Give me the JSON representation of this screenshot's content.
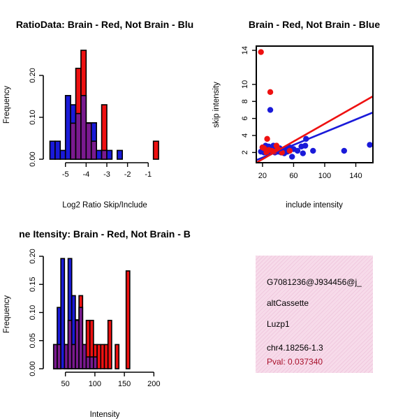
{
  "colors": {
    "red": "#ee1111",
    "blue": "#1a1ad9",
    "overlap": "#7a1a8f"
  },
  "chart_data": [
    {
      "type": "bar",
      "title": "RatioData: Brain - Red, Not Brain - Blu",
      "xlabel": "Log2 Ratio Skip/Include",
      "ylabel": "Frequency",
      "xlim": [
        -5.8,
        -0.3
      ],
      "ylim": [
        0,
        0.26
      ],
      "xticks": [
        -5,
        -4,
        -3,
        -2,
        -1
      ],
      "xtick_labels": [
        "-5",
        "-4",
        "-3",
        "-2",
        "-1"
      ],
      "yticks": [
        0,
        0.1,
        0.2
      ],
      "ytick_labels": [
        "0.00",
        "0.10",
        "0.20"
      ],
      "bin_start": -5.75,
      "bin_width": 0.25,
      "series": [
        {
          "name": "Brain",
          "color": "red",
          "values": [
            0,
            0,
            0,
            0,
            0.086,
            0.217,
            0.26,
            0.086,
            0.043,
            0,
            0.13,
            0,
            0,
            0,
            0,
            0,
            0,
            0,
            0,
            0,
            0.043
          ]
        },
        {
          "name": "Not Brain",
          "color": "blue",
          "values": [
            0.043,
            0.043,
            0.021,
            0.152,
            0.13,
            0.109,
            0.152,
            0.087,
            0.087,
            0.021,
            0.021,
            0.021,
            0,
            0.021,
            0,
            0,
            0,
            0,
            0,
            0,
            0
          ]
        }
      ]
    },
    {
      "type": "scatter",
      "title": "Brain - Red, Not Brain - Blue",
      "xlabel": "include intensity",
      "ylabel": "skip intensity",
      "xlim": [
        12,
        162
      ],
      "ylim": [
        0.8,
        14.5
      ],
      "xticks": [
        20,
        60,
        100,
        140
      ],
      "xtick_labels": [
        "20",
        "60",
        "100",
        "140"
      ],
      "yticks": [
        2,
        4,
        6,
        8,
        10,
        14
      ],
      "ytick_labels": [
        "2",
        "4",
        "6",
        "8",
        "10",
        "14"
      ],
      "series": [
        {
          "name": "Brain",
          "color": "red",
          "points": [
            [
              18,
              13.8
            ],
            [
              30,
              9.1
            ],
            [
              26,
              3.6
            ],
            [
              38,
              2.8
            ],
            [
              22,
              2.5
            ],
            [
              32,
              2.2
            ],
            [
              45,
              2.0
            ],
            [
              20,
              2.6
            ],
            [
              40,
              2.4
            ],
            [
              28,
              2.3
            ],
            [
              55,
              2.2
            ],
            [
              35,
              2.1
            ],
            [
              25,
              2.0
            ]
          ],
          "fit": [
            [
              12,
              0.8
            ],
            [
              162,
              8.6
            ]
          ]
        },
        {
          "name": "Not Brain",
          "color": "blue",
          "points": [
            [
              30,
              7.0
            ],
            [
              18,
              2.1
            ],
            [
              20,
              2.6
            ],
            [
              22,
              2.0
            ],
            [
              24,
              2.8
            ],
            [
              25,
              2.4
            ],
            [
              26,
              2.1
            ],
            [
              28,
              2.7
            ],
            [
              30,
              2.0
            ],
            [
              31,
              2.5
            ],
            [
              33,
              2.2
            ],
            [
              34,
              2.8
            ],
            [
              36,
              2.0
            ],
            [
              38,
              2.6
            ],
            [
              40,
              2.1
            ],
            [
              42,
              2.5
            ],
            [
              44,
              2.0
            ],
            [
              46,
              2.3
            ],
            [
              48,
              1.9
            ],
            [
              50,
              2.4
            ],
            [
              52,
              2.1
            ],
            [
              55,
              2.6
            ],
            [
              58,
              1.5
            ],
            [
              60,
              2.4
            ],
            [
              65,
              2.2
            ],
            [
              70,
              2.7
            ],
            [
              72,
              1.9
            ],
            [
              75,
              2.8
            ],
            [
              76,
              3.6
            ],
            [
              85,
              2.2
            ],
            [
              125,
              2.2
            ],
            [
              158,
              2.9
            ]
          ],
          "fit": [
            [
              12,
              1.1
            ],
            [
              162,
              6.7
            ]
          ]
        }
      ]
    },
    {
      "type": "bar",
      "title": "ne Itensity: Brain - Red, Not Brain - B",
      "xlabel": "Intensity",
      "ylabel": "Frequency",
      "xlim": [
        22,
        215
      ],
      "ylim": [
        0,
        0.2
      ],
      "xticks": [
        50,
        100,
        150,
        200
      ],
      "xtick_labels": [
        "50",
        "100",
        "150",
        "200"
      ],
      "yticks": [
        0,
        0.05,
        0.1,
        0.15,
        0.2
      ],
      "ytick_labels": [
        "0.00",
        "0.05",
        "0.10",
        "0.15",
        "0.20"
      ],
      "bin_start": 30,
      "bin_width": 6.15,
      "series": [
        {
          "name": "Brain",
          "color": "red",
          "values": [
            0.043,
            0.043,
            0,
            0.043,
            0.086,
            0.043,
            0.086,
            0.13,
            0.043,
            0.086,
            0.086,
            0.043,
            0.043,
            0.043,
            0.043,
            0.086,
            0,
            0.043,
            0,
            0,
            0.174
          ]
        },
        {
          "name": "Not Brain",
          "color": "blue",
          "values": [
            0.043,
            0.109,
            0.196,
            0.043,
            0.196,
            0.13,
            0.087,
            0.109,
            0.043,
            0.021,
            0.021,
            0.021,
            0,
            0,
            0,
            0,
            0,
            0,
            0,
            0,
            0
          ]
        }
      ]
    }
  ],
  "info": {
    "line1": "G7081236@J934456@j_",
    "line2": "altCassette",
    "line3": "Luzp1",
    "line4": "chr4.18256-1.3",
    "pval": "Pval: 0.037340"
  }
}
